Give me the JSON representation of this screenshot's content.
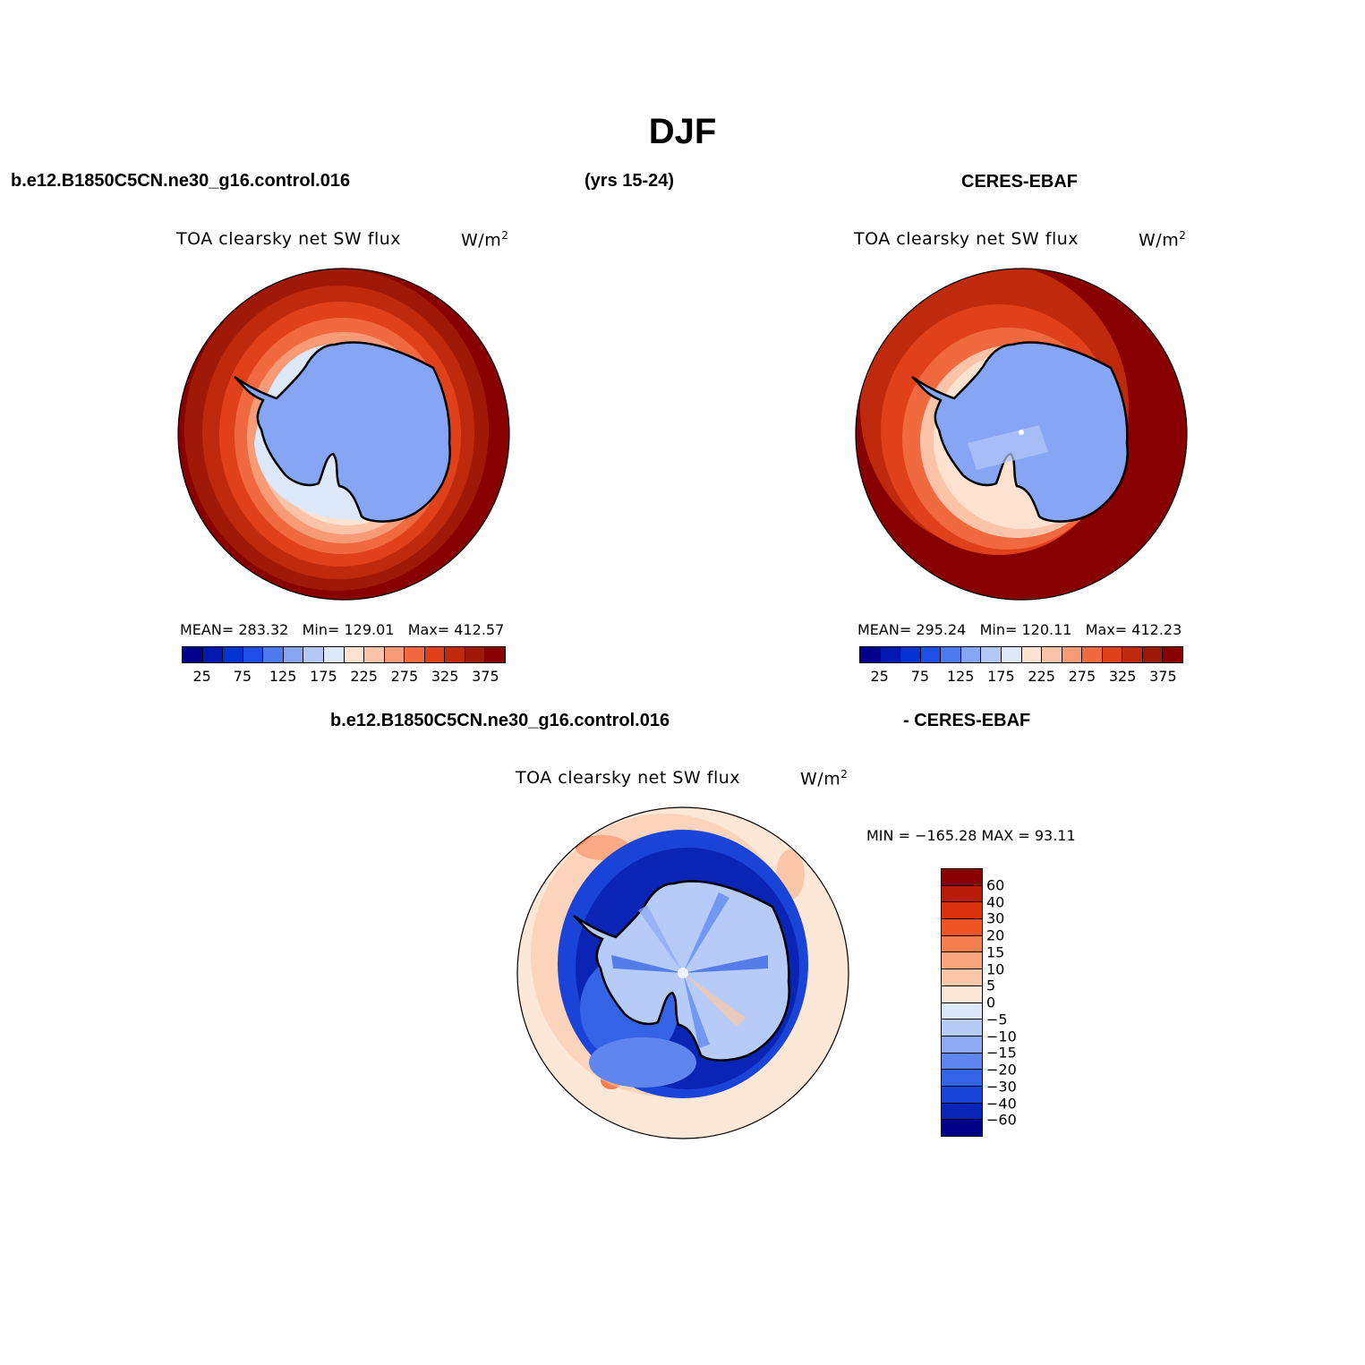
{
  "figure": {
    "season": "DJF",
    "case_name": "b.e12.B1850C5CN.ne30_g16.control.016",
    "years": "(yrs 15-24)",
    "obs_name": "CERES-EBAF",
    "diff_left": "b.e12.B1850C5CN.ne30_g16.control.016",
    "diff_right": "- CERES-EBAF"
  },
  "panels": {
    "model": {
      "variable": "TOA clearsky net SW flux",
      "units": "W/m",
      "units_exp": "2",
      "mean_label": "MEAN=",
      "mean": "283.32",
      "min_label": "Min=",
      "min": "129.01",
      "max_label": "Max=",
      "max": "412.57"
    },
    "obs": {
      "variable": "TOA clearsky net SW flux",
      "units": "W/m",
      "units_exp": "2",
      "mean_label": "MEAN=",
      "mean": "295.24",
      "min_label": "Min=",
      "min": "120.11",
      "max_label": "Max=",
      "max": "412.23"
    },
    "diff": {
      "variable": "TOA clearsky net SW flux",
      "units": "W/m",
      "units_exp": "2",
      "minmax": "MIN = −165.28 MAX =  93.11"
    }
  },
  "colorbars": {
    "abs": {
      "colors": [
        "#00008b",
        "#0019b0",
        "#0033d2",
        "#1f4fe8",
        "#4d7aef",
        "#86a6f5",
        "#b3c8f8",
        "#dde8fb",
        "#fde3cf",
        "#fbc3a8",
        "#f79b77",
        "#f0693f",
        "#e0401a",
        "#c02a0c",
        "#a01806",
        "#880000"
      ],
      "tick_labels": [
        "25",
        "75",
        "125",
        "175",
        "225",
        "275",
        "325",
        "375"
      ]
    },
    "diff": {
      "colors": [
        "#880000",
        "#b81c08",
        "#d9320d",
        "#ef5524",
        "#f57f4f",
        "#f9a57e",
        "#fbc7a8",
        "#fde8d7",
        "#dbe8fb",
        "#b6cbf8",
        "#8eaaf5",
        "#5f86ef",
        "#3563e6",
        "#1a43d8",
        "#0a25b5",
        "#000086"
      ],
      "labels": [
        "60",
        "40",
        "30",
        "20",
        "15",
        "10",
        "5",
        "0",
        "−5",
        "−10",
        "−15",
        "−20",
        "−30",
        "−40",
        "−60"
      ]
    }
  },
  "map_colors": {
    "deep_red": "#880000",
    "ocean_orange": "#e0401a",
    "ice_blue": "#86a6f5",
    "pale_blue": "#dde8fb",
    "diff_background": "#fde8d7",
    "diff_blue": "#0a25b5"
  }
}
